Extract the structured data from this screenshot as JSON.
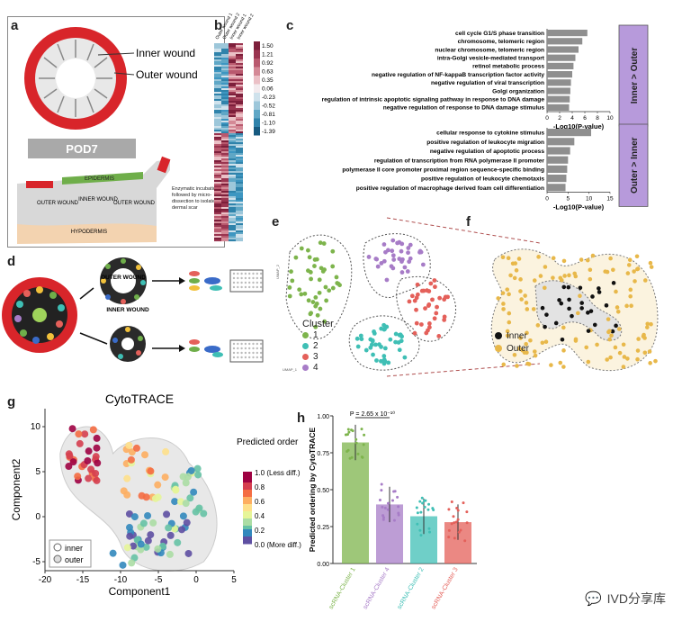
{
  "panel_a": {
    "label": "a",
    "inner_wound": "Inner wound",
    "outer_wound": "Outer wound",
    "pod_label": "POD7",
    "epidermis": "EPIDERMIS",
    "hypodermis": "HYPODERMIS",
    "outer_wound_small": "OUTER WOUND",
    "inner_wound_small": "INNER WOUND",
    "outer_wound_small2": "OUTER WOUND",
    "annotation": "Enzymatic incubation followed by micro-dissection to isolate dermal scar"
  },
  "panel_b": {
    "label": "b",
    "columns": [
      "Outer wound 1",
      "Outer wound 2",
      "Inner wound 1",
      "Inner wound 2"
    ],
    "scale": [
      "1.50",
      "1.21",
      "0.92",
      "0.63",
      "0.35",
      "0.06",
      "-0.23",
      "-0.52",
      "-0.81",
      "-1.10",
      "-1.39"
    ],
    "scale_colors": [
      "#7d1f3b",
      "#9a3550",
      "#b9596e",
      "#d48996",
      "#ebc0c6",
      "#f3ebee",
      "#cfe2ec",
      "#9dc7da",
      "#5fa7c6",
      "#2f83ab",
      "#175a80"
    ]
  },
  "panel_c": {
    "label": "c",
    "top_group": "Inner > Outer",
    "bottom_group": "Outer > Inner",
    "xlabel": "-Log10(P-value)",
    "chart_data": [
      {
        "type": "bar",
        "title": "Inner > Outer",
        "xlabel": "-Log10(P-value)",
        "xlim": [
          0,
          10
        ],
        "xticks": [
          "0",
          "2",
          "4",
          "6",
          "8",
          "10"
        ],
        "categories": [
          "cell cycle G1/S phase transition",
          "chromosome, telomeric region",
          "nuclear chromosome, telomeric region",
          "intra-Golgi vesicle-mediated transport",
          "retinol metabolic process",
          "negative regulation of NF-kappaB transcription factor activity",
          "negative regulation of viral transcription",
          "Golgi organization",
          "regulation of intrinsic apoptotic signaling pathway in response to DNA damage",
          "negative regulation of response to DNA damage stimulus"
        ],
        "values": [
          6.4,
          5.6,
          5.0,
          4.5,
          4.2,
          4.0,
          3.8,
          3.7,
          3.6,
          3.5
        ]
      },
      {
        "type": "bar",
        "title": "Outer > Inner",
        "xlabel": "-Log10(P-value)",
        "xlim": [
          0,
          15
        ],
        "xticks": [
          "0",
          "5",
          "10",
          "15"
        ],
        "categories": [
          "cellular response to cytokine stimulus",
          "positive regulation of leukocyte migration",
          "negative regulation of apoptotic process",
          "regulation of transcription from RNA polymerase II promoter",
          "polymerase II core promoter proximal region sequence-specific binding",
          "positive regulation of leukocyte chemotaxis",
          "positive regulation of macrophage derived foam cell differentiation"
        ],
        "values": [
          10.5,
          6.5,
          5.5,
          5.0,
          4.8,
          4.6,
          4.4
        ]
      }
    ]
  },
  "panel_d": {
    "label": "d",
    "outer_wound": "OUTER WOUND",
    "inner_wound": "INNER WOUND"
  },
  "panel_e": {
    "label": "e",
    "legend_title": "Cluster",
    "clusters": [
      {
        "name": "1",
        "color": "#7db44c"
      },
      {
        "name": "2",
        "color": "#3fbfb5"
      },
      {
        "name": "3",
        "color": "#e4605a"
      },
      {
        "name": "4",
        "color": "#a77cc7"
      }
    ],
    "xlabel": "UMAP_1",
    "ylabel": "UMAP_2"
  },
  "panel_f": {
    "label": "f",
    "legend": [
      {
        "name": "Inner",
        "color": "#111111"
      },
      {
        "name": "Outer",
        "color": "#e8b84a"
      }
    ]
  },
  "panel_g": {
    "label": "g",
    "title": "CytoTRACE",
    "xlabel": "Component1",
    "ylabel": "Component2",
    "xticks": [
      "-20",
      "-15",
      "-10",
      "-5",
      "0",
      "5"
    ],
    "yticks": [
      "10",
      "5",
      "0",
      "-5"
    ],
    "colorbar_title": "Predicted order",
    "colorbar_labels": [
      "1.0 (Less diff.)",
      "0.8",
      "0.6",
      "0.4",
      "0.2",
      "0.0 (More diff.)"
    ],
    "legend": [
      "inner",
      "outer"
    ]
  },
  "panel_h": {
    "label": "h",
    "ylabel": "Predicted ordering by CytoTRACE",
    "pvalue": "P = 2.65 x 10⁻¹⁰",
    "chart_data": {
      "type": "bar",
      "ylabel": "Predicted ordering by CytoTRACE",
      "ylim": [
        0,
        1.0
      ],
      "yticks": [
        "0.00",
        "0.25",
        "0.50",
        "0.75",
        "1.00"
      ],
      "categories": [
        "scRNA-Cluster 1",
        "scRNA-Cluster 4",
        "scRNA-Cluster 2",
        "scRNA-Cluster 3"
      ],
      "values": [
        0.82,
        0.4,
        0.32,
        0.28
      ],
      "colors": [
        "#7db44c",
        "#a77cc7",
        "#3fbfb5",
        "#e4605a"
      ]
    }
  },
  "watermark": "IVD分享库"
}
